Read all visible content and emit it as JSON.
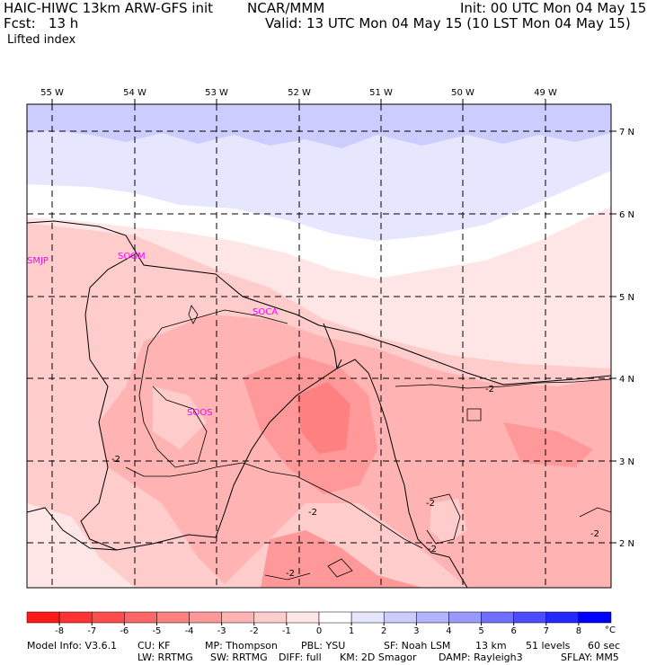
{
  "header": {
    "model_title": "HAIC-HIWC 13km ARW-GFS init",
    "institution": "NCAR/MMM",
    "init_time": "Init: 00 UTC Mon 04 May 15",
    "forecast_hour": "Fcst:   13 h",
    "valid_time": "Valid: 13 UTC Mon 04 May 15 (10 LST Mon 04 May 15)",
    "field_name": "Lifted index"
  },
  "map": {
    "longitude_labels": [
      "55 W",
      "54 W",
      "53 W",
      "52 W",
      "51 W",
      "50 W",
      "49 W"
    ],
    "latitude_labels": [
      "7 N",
      "6 N",
      "5 N",
      "4 N",
      "3 N",
      "2 N"
    ],
    "stations": [
      "SMJP",
      "SOGM",
      "SOCA",
      "SOOS"
    ],
    "contour_labels": [
      "-2",
      "-2",
      "-2",
      "-2",
      "-2",
      "-2",
      "-2"
    ]
  },
  "colorbar": {
    "tick_labels": [
      "-8",
      "-7",
      "-6",
      "-5",
      "-4",
      "-3",
      "-2",
      "-1",
      "0",
      "1",
      "2",
      "3",
      "4",
      "5",
      "6",
      "7",
      "8"
    ],
    "unit": "°C",
    "colors": [
      "#ff1a1a",
      "#ff3333",
      "#ff4d4d",
      "#ff6666",
      "#ff8080",
      "#ff9999",
      "#ffb3b3",
      "#ffcccc",
      "#ffe6e6",
      "#ffffff",
      "#e6e6ff",
      "#ccccff",
      "#b3b3ff",
      "#9999ff",
      "#7070ff",
      "#4d4dff",
      "#2626ff",
      "#0000ff"
    ]
  },
  "footer": {
    "line1": [
      "Model Info: V3.6.1",
      "CU: KF",
      "MP: Thompson",
      "PBL: YSU",
      "SF: Noah LSM",
      "13 km",
      "51 levels",
      "60 sec"
    ],
    "line2": [
      "LW: RRTMG",
      "SW: RRTMG",
      "DIFF: full",
      "KM: 2D Smagor",
      "DAMP: Rayleigh3",
      "SFLAY: MM5"
    ]
  }
}
